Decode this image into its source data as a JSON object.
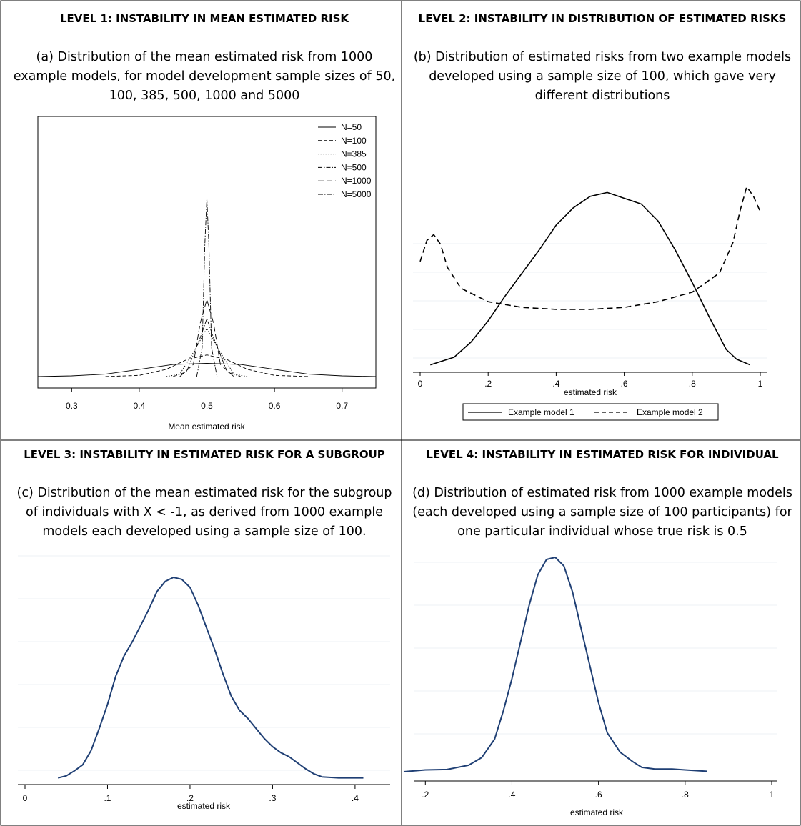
{
  "panels": [
    {
      "title": "LEVEL 1: INSTABILITY IN MEAN ESTIMATED RISK",
      "caption_lines": [
        "(a) Distribution of the mean estimated risk from 1000",
        "example models, for model development sample sizes of 50,",
        "100, 385, 500, 1000 and 5000"
      ]
    },
    {
      "title": "LEVEL 2: INSTABILITY IN DISTRIBUTION OF ESTIMATED RISKS",
      "caption_lines": [
        "(b) Distribution of estimated risks from two example models",
        "developed using a sample size of 100, which gave very",
        "different distributions"
      ]
    },
    {
      "title": "LEVEL 3: INSTABILITY IN ESTIMATED RISK FOR A SUBGROUP",
      "caption_lines": [
        "(c) Distribution of the mean estimated risk for the subgroup",
        "of individuals with X < -1, as derived from 1000 example",
        "models each developed using a sample size of 100."
      ]
    },
    {
      "title": "LEVEL 4: INSTABILITY IN ESTIMATED RISK FOR INDIVIDUAL",
      "caption_lines": [
        "(d)  Distribution of estimated risk from 1000 example models",
        "(each developed using a sample size of 100 participants) for",
        "one particular individual whose true risk is 0.5"
      ]
    }
  ],
  "chart_data": [
    {
      "type": "line",
      "xlabel": "Mean estimated risk",
      "xlim": [
        0.25,
        0.75
      ],
      "xticks": [
        0.3,
        0.4,
        0.5,
        0.6,
        0.7
      ],
      "xtick_labels": [
        "0.3",
        "0.4",
        "0.5",
        "0.6",
        "0.7"
      ],
      "ylim": [
        0,
        1
      ],
      "legend_position": "top-right",
      "series": [
        {
          "name": "N=50",
          "dash": "",
          "x": [
            0.25,
            0.3,
            0.35,
            0.4,
            0.45,
            0.5,
            0.55,
            0.6,
            0.65,
            0.7,
            0.75
          ],
          "y": [
            0.0,
            0.003,
            0.01,
            0.03,
            0.05,
            0.055,
            0.05,
            0.03,
            0.01,
            0.003,
            0.0
          ]
        },
        {
          "name": "N=100",
          "dash": "5,3",
          "x": [
            0.35,
            0.4,
            0.44,
            0.47,
            0.5,
            0.53,
            0.56,
            0.6,
            0.65
          ],
          "y": [
            0.0,
            0.005,
            0.03,
            0.07,
            0.09,
            0.07,
            0.03,
            0.005,
            0.0
          ]
        },
        {
          "name": "N=385",
          "dash": "1.5,2",
          "x": [
            0.44,
            0.46,
            0.48,
            0.5,
            0.52,
            0.54,
            0.56
          ],
          "y": [
            0.0,
            0.01,
            0.1,
            0.2,
            0.1,
            0.01,
            0.0
          ]
        },
        {
          "name": "N=500",
          "dash": "6,2,1.5,2",
          "x": [
            0.45,
            0.47,
            0.49,
            0.5,
            0.51,
            0.53,
            0.55
          ],
          "y": [
            0.0,
            0.02,
            0.16,
            0.24,
            0.16,
            0.02,
            0.0
          ]
        },
        {
          "name": "N=1000",
          "dash": "8,4",
          "x": [
            0.46,
            0.48,
            0.49,
            0.5,
            0.51,
            0.52,
            0.54
          ],
          "y": [
            0.0,
            0.05,
            0.22,
            0.32,
            0.22,
            0.05,
            0.0
          ]
        },
        {
          "name": "N=5000",
          "dash": "7,2,1.5,2",
          "x": [
            0.485,
            0.493,
            0.497,
            0.5,
            0.503,
            0.507,
            0.515
          ],
          "y": [
            0.0,
            0.12,
            0.55,
            0.74,
            0.55,
            0.12,
            0.0
          ]
        }
      ]
    },
    {
      "type": "line",
      "xlabel": "estimated risk",
      "xlim": [
        0,
        1
      ],
      "xticks": [
        0,
        0.2,
        0.4,
        0.6,
        0.8,
        1
      ],
      "xtick_labels": [
        "0",
        ".2",
        ".4",
        ".6",
        ".8",
        "1"
      ],
      "ylim": [
        0,
        1
      ],
      "legend_position": "bottom",
      "series": [
        {
          "name": "Example model 1",
          "dash": "",
          "x": [
            0.03,
            0.1,
            0.15,
            0.2,
            0.25,
            0.3,
            0.35,
            0.4,
            0.45,
            0.5,
            0.55,
            0.6,
            0.65,
            0.7,
            0.75,
            0.8,
            0.85,
            0.9,
            0.93,
            0.97
          ],
          "y": [
            0.02,
            0.06,
            0.14,
            0.25,
            0.38,
            0.5,
            0.62,
            0.75,
            0.84,
            0.9,
            0.92,
            0.89,
            0.86,
            0.77,
            0.62,
            0.45,
            0.27,
            0.1,
            0.05,
            0.02
          ]
        },
        {
          "name": "Example model 2",
          "dash": "8,5",
          "x": [
            0.0,
            0.02,
            0.04,
            0.06,
            0.08,
            0.12,
            0.2,
            0.3,
            0.4,
            0.45,
            0.5,
            0.6,
            0.7,
            0.8,
            0.88,
            0.92,
            0.94,
            0.96,
            0.98,
            1.0
          ],
          "y": [
            0.56,
            0.67,
            0.7,
            0.65,
            0.53,
            0.42,
            0.35,
            0.32,
            0.31,
            0.31,
            0.31,
            0.32,
            0.35,
            0.4,
            0.5,
            0.66,
            0.82,
            0.95,
            0.9,
            0.82
          ]
        }
      ]
    },
    {
      "type": "line",
      "xlabel": "estimated risk",
      "xlim": [
        0,
        0.42
      ],
      "xticks": [
        0,
        0.1,
        0.2,
        0.3,
        0.4
      ],
      "xtick_labels": [
        "0",
        ".1",
        ".2",
        ".3",
        ".4"
      ],
      "ylim": [
        0,
        1
      ],
      "series": [
        {
          "name": "",
          "dash": "",
          "x": [
            0.04,
            0.05,
            0.06,
            0.07,
            0.08,
            0.09,
            0.1,
            0.11,
            0.12,
            0.13,
            0.14,
            0.15,
            0.16,
            0.17,
            0.18,
            0.19,
            0.2,
            0.21,
            0.22,
            0.23,
            0.24,
            0.25,
            0.26,
            0.27,
            0.28,
            0.29,
            0.3,
            0.31,
            0.32,
            0.33,
            0.34,
            0.35,
            0.36,
            0.38,
            0.4,
            0.41
          ],
          "y": [
            0.005,
            0.015,
            0.04,
            0.07,
            0.14,
            0.25,
            0.37,
            0.51,
            0.61,
            0.68,
            0.76,
            0.84,
            0.93,
            0.98,
            1.0,
            0.99,
            0.95,
            0.86,
            0.75,
            0.64,
            0.52,
            0.41,
            0.34,
            0.3,
            0.25,
            0.2,
            0.16,
            0.13,
            0.11,
            0.08,
            0.05,
            0.025,
            0.01,
            0.005,
            0.005,
            0.005
          ]
        }
      ]
    },
    {
      "type": "line",
      "xlabel": "estimated risk",
      "xlim": [
        0.15,
        1
      ],
      "xticks": [
        0.2,
        0.4,
        0.6,
        0.8,
        1
      ],
      "xtick_labels": [
        ".2",
        ".4",
        ".6",
        ".8",
        "1"
      ],
      "ylim": [
        0,
        1
      ],
      "series": [
        {
          "name": "",
          "dash": "",
          "x": [
            0.15,
            0.2,
            0.25,
            0.3,
            0.33,
            0.36,
            0.38,
            0.4,
            0.42,
            0.44,
            0.46,
            0.48,
            0.5,
            0.52,
            0.54,
            0.56,
            0.58,
            0.6,
            0.62,
            0.65,
            0.68,
            0.7,
            0.73,
            0.77,
            0.8,
            0.85
          ],
          "y": [
            0.01,
            0.018,
            0.02,
            0.04,
            0.075,
            0.16,
            0.29,
            0.44,
            0.61,
            0.78,
            0.92,
            0.99,
            1.0,
            0.96,
            0.84,
            0.67,
            0.5,
            0.33,
            0.19,
            0.1,
            0.055,
            0.03,
            0.022,
            0.022,
            0.018,
            0.012
          ]
        }
      ]
    }
  ]
}
